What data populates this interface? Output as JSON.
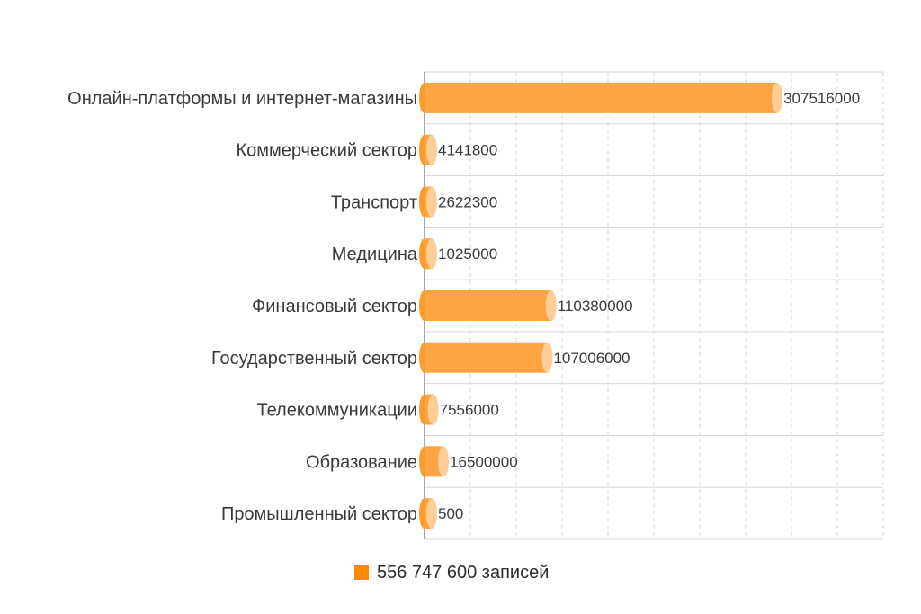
{
  "colors": {
    "bar": "#ffa443",
    "bar_cap": "#ffce96",
    "bar_edge": "#ff9a2c",
    "grid": "#d6d6d6",
    "axis": "#8a8a8a",
    "legend_swatch": "#ff8a00"
  },
  "chart_data": {
    "type": "bar",
    "orientation": "horizontal",
    "style": "3d-cylinder",
    "categories": [
      "Онлайн-платформы и интернет-магазины",
      "Коммерческий сектор",
      "Транспорт",
      "Медицина",
      "Финансовый сектор",
      "Государственный сектор",
      "Телекоммуникации",
      "Образование",
      "Промышленный сектор"
    ],
    "values": [
      307516000,
      4141800,
      2622300,
      1025000,
      110380000,
      107006000,
      7556000,
      16500000,
      500
    ],
    "value_labels": [
      "307516000",
      "4141800",
      "2622300",
      "1025000",
      "110380000",
      "107006000",
      "7556000",
      "16500000",
      "500"
    ],
    "xlim": [
      0,
      400000000
    ],
    "grid": true,
    "legend_position": "bottom",
    "legend": [
      "556 747 600 записей"
    ]
  }
}
